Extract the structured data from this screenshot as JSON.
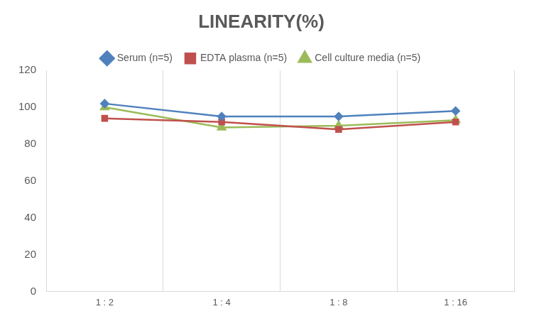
{
  "chart_data": {
    "type": "line",
    "title": "LINEARITY(%)",
    "categories": [
      "1 : 2",
      "1 : 4",
      "1 : 8",
      "1 : 16"
    ],
    "series": [
      {
        "name": "Serum (n=5)",
        "color": "#4f81bd",
        "marker": "diamond",
        "values": [
          102,
          95,
          95,
          98
        ]
      },
      {
        "name": "EDTA plasma (n=5)",
        "color": "#c0504d",
        "marker": "square",
        "values": [
          94,
          92,
          88,
          92
        ]
      },
      {
        "name": "Cell culture media (n=5)",
        "color": "#9bbb59",
        "marker": "triangle",
        "values": [
          100,
          89,
          90,
          93
        ]
      }
    ],
    "ylim": [
      0,
      120
    ],
    "yticks": [
      0,
      20,
      40,
      60,
      80,
      100,
      120
    ],
    "grid": "x",
    "legend": "top"
  }
}
